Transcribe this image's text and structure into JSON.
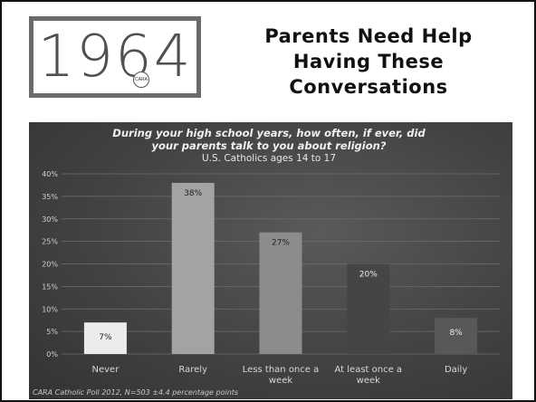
{
  "slide": {
    "logo_text": "1964",
    "logo_seal_text": "CARA",
    "title_lines": [
      "Parents Need Help",
      "Having These",
      "Conversations"
    ]
  },
  "chart_data": {
    "type": "bar",
    "title": "During your high school years, how often, if ever, did your parents talk to you about religion?",
    "subtitle": "U.S. Catholics ages 14 to 17",
    "categories": [
      "Never",
      "Rarely",
      "Less than once a week",
      "At least once a week",
      "Daily"
    ],
    "values": [
      7,
      38,
      27,
      20,
      8
    ],
    "value_labels": [
      "7%",
      "38%",
      "27%",
      "20%",
      "8%"
    ],
    "ylim": [
      0,
      40
    ],
    "yticks": [
      "0%",
      "5%",
      "10%",
      "15%",
      "20%",
      "25%",
      "30%",
      "35%",
      "40%"
    ],
    "bar_colors": [
      "#ececec",
      "#a3a3a3",
      "#8c8c8c",
      "#454545",
      "#585858"
    ],
    "label_colors": [
      "#222222",
      "#222222",
      "#222222",
      "#eeeeee",
      "#eeeeee"
    ],
    "grid": true,
    "source_note": "CARA Catholic Poll 2012, N=503 ±4.4 percentage points"
  }
}
